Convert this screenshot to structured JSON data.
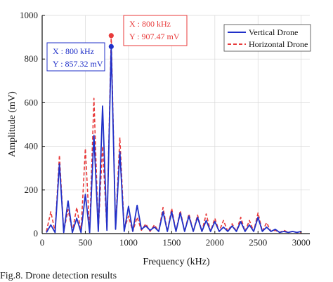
{
  "caption": "Fig.8. Drone detection results",
  "chart_data": {
    "type": "line",
    "xlabel": "Frequency (kHz)",
    "ylabel": "Amplitude (mV)",
    "xlim": [
      0,
      3100
    ],
    "ylim": [
      0,
      1000
    ],
    "xticks": [
      0,
      500,
      1000,
      1500,
      2000,
      2500,
      3000
    ],
    "yticks": [
      0,
      200,
      400,
      600,
      800,
      1000
    ],
    "grid": true,
    "legend_position": "top-right",
    "series": [
      {
        "name": "Vertical Drone",
        "color": "#2030c8",
        "style": "solid",
        "x": [
          50,
          100,
          150,
          200,
          250,
          300,
          350,
          400,
          450,
          500,
          550,
          600,
          650,
          700,
          750,
          800,
          850,
          900,
          950,
          1000,
          1050,
          1100,
          1150,
          1200,
          1250,
          1300,
          1350,
          1400,
          1450,
          1500,
          1550,
          1600,
          1650,
          1700,
          1750,
          1800,
          1850,
          1900,
          1950,
          2000,
          2050,
          2100,
          2150,
          2200,
          2250,
          2300,
          2350,
          2400,
          2450,
          2500,
          2550,
          2600,
          2650,
          2700,
          2750,
          2800,
          2850,
          2900,
          2950,
          3000
        ],
        "values": [
          5,
          40,
          5,
          320,
          5,
          150,
          5,
          70,
          5,
          180,
          5,
          450,
          10,
          585,
          15,
          857.32,
          20,
          375,
          10,
          125,
          10,
          130,
          20,
          35,
          15,
          30,
          10,
          100,
          10,
          100,
          10,
          95,
          10,
          80,
          10,
          75,
          10,
          60,
          10,
          55,
          10,
          30,
          10,
          35,
          10,
          55,
          10,
          40,
          10,
          75,
          10,
          30,
          10,
          20,
          5,
          10,
          5,
          10,
          5,
          10
        ]
      },
      {
        "name": "Horizontal Drone",
        "color": "#e83a3a",
        "style": "dashed",
        "x": [
          50,
          100,
          150,
          200,
          250,
          300,
          350,
          400,
          450,
          500,
          550,
          600,
          650,
          700,
          750,
          800,
          850,
          900,
          950,
          1000,
          1050,
          1100,
          1150,
          1200,
          1250,
          1300,
          1350,
          1400,
          1450,
          1500,
          1550,
          1600,
          1650,
          1700,
          1750,
          1800,
          1850,
          1900,
          1950,
          2000,
          2050,
          2100,
          2150,
          2200,
          2250,
          2300,
          2350,
          2400,
          2450,
          2500,
          2550,
          2600,
          2650,
          2700,
          2750,
          2800,
          2850,
          2900,
          2950,
          3000
        ],
        "values": [
          10,
          100,
          10,
          360,
          10,
          110,
          10,
          120,
          10,
          390,
          10,
          620,
          15,
          400,
          20,
          907.47,
          25,
          440,
          20,
          80,
          10,
          75,
          15,
          45,
          10,
          40,
          10,
          120,
          10,
          115,
          10,
          105,
          10,
          90,
          10,
          85,
          10,
          90,
          10,
          70,
          10,
          60,
          10,
          45,
          10,
          75,
          10,
          60,
          10,
          95,
          10,
          50,
          10,
          15,
          5,
          15,
          5,
          10,
          5,
          5
        ]
      }
    ],
    "annotations": [
      {
        "series": "Horizontal Drone",
        "x_text": "X : 800 kHz",
        "y_text": "Y : 907.47 mV",
        "x": 800,
        "y": 907.47,
        "color": "#e83a3a"
      },
      {
        "series": "Vertical Drone",
        "x_text": "X : 800 kHz",
        "y_text": "Y : 857.32 mV",
        "x": 800,
        "y": 857.32,
        "color": "#2030c8"
      }
    ]
  }
}
